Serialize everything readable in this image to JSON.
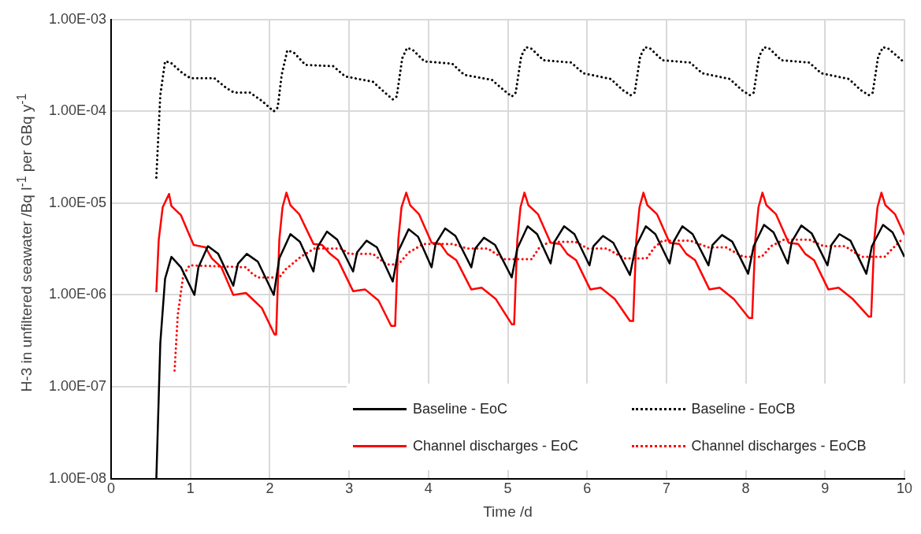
{
  "chart_data": {
    "type": "line",
    "xlabel": "Time /d",
    "ylabel": "H-3 in unfiltered seawater /Bq l$^{-1}$ per GBq y$^{-1}$",
    "xlim": [
      0,
      10
    ],
    "xticks": [
      0,
      1,
      2,
      3,
      4,
      5,
      6,
      7,
      8,
      9,
      10
    ],
    "ylim": [
      1e-08,
      0.001
    ],
    "yticks": [
      {
        "value": 1e-08,
        "label": "1.00E-08"
      },
      {
        "value": 1e-07,
        "label": "1.00E-07"
      },
      {
        "value": 1e-06,
        "label": "1.00E-06"
      },
      {
        "value": 1e-05,
        "label": "1.00E-05"
      },
      {
        "value": 0.0001,
        "label": "1.00E-04"
      },
      {
        "value": 0.001,
        "label": "1.00E-03"
      }
    ],
    "log": "y",
    "grid": true,
    "legend": "bottom right",
    "marker": "none",
    "series": [
      {
        "name": "Baseline - EoC",
        "color": "#000000",
        "line_style": "solid",
        "x": [
          0.57,
          0.62,
          0.68,
          0.76,
          0.88,
          1.05,
          1.1,
          1.22,
          1.35,
          1.54,
          1.6,
          1.71,
          1.85,
          2.05,
          2.12,
          2.26,
          2.38,
          2.55,
          2.6,
          2.72,
          2.85,
          3.05,
          3.1,
          3.22,
          3.35,
          3.55,
          3.62,
          3.75,
          3.87,
          4.04,
          4.09,
          4.21,
          4.34,
          4.54,
          4.59,
          4.7,
          4.84,
          5.05,
          5.12,
          5.25,
          5.37,
          5.54,
          5.59,
          5.71,
          5.84,
          6.03,
          6.08,
          6.2,
          6.33,
          6.54,
          6.61,
          6.74,
          6.86,
          7.04,
          7.09,
          7.2,
          7.33,
          7.53,
          7.58,
          7.7,
          7.83,
          8.03,
          8.1,
          8.23,
          8.35,
          8.53,
          8.58,
          8.7,
          8.83,
          9.03,
          9.08,
          9.18,
          9.32,
          9.52,
          9.59,
          9.73,
          9.85,
          10
        ],
        "values": [
          1e-08,
          3e-07,
          1.5e-06,
          2.6e-06,
          2e-06,
          1e-06,
          2e-06,
          3.4e-06,
          2.8e-06,
          1.26e-06,
          2.2e-06,
          2.8e-06,
          2.3e-06,
          1e-06,
          2.5e-06,
          4.6e-06,
          3.8e-06,
          1.8e-06,
          3.3e-06,
          4.9e-06,
          4e-06,
          1.8e-06,
          2.9e-06,
          3.9e-06,
          3.3e-06,
          1.4e-06,
          3e-06,
          5.2e-06,
          4.3e-06,
          2e-06,
          3.6e-06,
          5.3e-06,
          4.4e-06,
          2e-06,
          3.2e-06,
          4.2e-06,
          3.5e-06,
          1.55e-06,
          3.2e-06,
          5.6e-06,
          4.6e-06,
          2.2e-06,
          3.8e-06,
          5.6e-06,
          4.6e-06,
          2.1e-06,
          3.4e-06,
          4.4e-06,
          3.7e-06,
          1.65e-06,
          3.3e-06,
          5.6e-06,
          4.6e-06,
          2.2e-06,
          3.8e-06,
          5.6e-06,
          4.6e-06,
          2.1e-06,
          3.5e-06,
          4.5e-06,
          3.8e-06,
          1.7e-06,
          3.4e-06,
          5.8e-06,
          4.8e-06,
          2.2e-06,
          3.8e-06,
          5.7e-06,
          4.7e-06,
          2.1e-06,
          3.5e-06,
          4.6e-06,
          3.9e-06,
          1.7e-06,
          3.4e-06,
          5.8e-06,
          4.8e-06,
          2.6e-06
        ]
      },
      {
        "name": "Baseline - EoCB",
        "color": "#000000",
        "line_style": "dotted",
        "x": [
          0.57,
          0.62,
          0.68,
          0.75,
          0.9,
          1.0,
          1.3,
          1.45,
          1.55,
          1.75,
          1.9,
          2.05,
          2.1,
          2.15,
          2.22,
          2.3,
          2.45,
          2.8,
          2.95,
          3.3,
          3.45,
          3.55,
          3.6,
          3.67,
          3.73,
          3.8,
          3.95,
          4.3,
          4.45,
          4.8,
          4.95,
          5.05,
          5.1,
          5.17,
          5.23,
          5.3,
          5.45,
          5.8,
          5.95,
          6.3,
          6.45,
          6.55,
          6.6,
          6.67,
          6.73,
          6.8,
          6.95,
          7.3,
          7.45,
          7.8,
          7.95,
          8.05,
          8.1,
          8.17,
          8.23,
          8.3,
          8.45,
          8.8,
          8.95,
          9.3,
          9.45,
          9.55,
          9.6,
          9.67,
          9.73,
          9.8,
          10
        ],
        "values": [
          1.9e-05,
          0.00015,
          0.00035,
          0.00034,
          0.00026,
          0.00023,
          0.00023,
          0.00018,
          0.00016,
          0.00016,
          0.00013,
          0.0001,
          0.00011,
          0.00025,
          0.00046,
          0.00044,
          0.00032,
          0.00031,
          0.00024,
          0.00021,
          0.00016,
          0.000135,
          0.000145,
          0.00038,
          0.00049,
          0.00047,
          0.00035,
          0.00033,
          0.00025,
          0.00022,
          0.00017,
          0.000145,
          0.00016,
          0.0004,
          0.0005,
          0.00048,
          0.00036,
          0.00034,
          0.00026,
          0.000225,
          0.00017,
          0.00015,
          0.00016,
          0.0004,
          0.0005,
          0.00048,
          0.00036,
          0.00034,
          0.00026,
          0.000225,
          0.00017,
          0.00015,
          0.00016,
          0.0004,
          0.0005,
          0.00048,
          0.00036,
          0.00034,
          0.00026,
          0.000225,
          0.00017,
          0.00015,
          0.00016,
          0.0004,
          0.0005,
          0.00048,
          0.00034
        ]
      },
      {
        "name": "Channel discharges - EoC",
        "color": "#ff0000",
        "line_style": "solid",
        "x": [
          0.57,
          0.6,
          0.65,
          0.73,
          0.76,
          0.88,
          1.04,
          1.19,
          1.27,
          1.39,
          1.54,
          1.7,
          1.8,
          1.9,
          2.06,
          2.08,
          2.12,
          2.16,
          2.21,
          2.26,
          2.37,
          2.55,
          2.66,
          2.76,
          2.86,
          3.05,
          3.2,
          3.37,
          3.53,
          3.58,
          3.62,
          3.66,
          3.72,
          3.77,
          3.88,
          4.04,
          4.15,
          4.24,
          4.35,
          4.54,
          4.67,
          4.85,
          5.05,
          5.08,
          5.12,
          5.16,
          5.21,
          5.26,
          5.38,
          5.54,
          5.66,
          5.75,
          5.86,
          6.04,
          6.17,
          6.35,
          6.54,
          6.58,
          6.62,
          6.66,
          6.71,
          6.76,
          6.88,
          7.04,
          7.16,
          7.25,
          7.36,
          7.54,
          7.67,
          7.85,
          8.04,
          8.08,
          8.12,
          8.16,
          8.21,
          8.26,
          8.38,
          8.54,
          8.66,
          8.75,
          8.86,
          9.04,
          9.17,
          9.35,
          9.55,
          9.58,
          9.62,
          9.66,
          9.71,
          9.76,
          9.88,
          10
        ],
        "values": [
          1.07e-06,
          4e-06,
          9e-06,
          1.26e-05,
          9.3e-06,
          7.4e-06,
          3.5e-06,
          3.3e-06,
          2.5e-06,
          2e-06,
          1e-06,
          1.05e-06,
          8.7e-07,
          7.2e-07,
          3.7e-07,
          3.7e-07,
          4e-06,
          9e-06,
          1.3e-05,
          9.5e-06,
          7.6e-06,
          3.6e-06,
          3.5e-06,
          2.8e-06,
          2.4e-06,
          1.1e-06,
          1.15e-06,
          8.7e-07,
          4.6e-07,
          4.6e-07,
          4e-06,
          9e-06,
          1.3e-05,
          9.5e-06,
          7.6e-06,
          3.7e-06,
          3.6e-06,
          2.8e-06,
          2.4e-06,
          1.15e-06,
          1.2e-06,
          9e-07,
          4.8e-07,
          4.8e-07,
          4e-06,
          9e-06,
          1.3e-05,
          9.5e-06,
          7.6e-06,
          3.7e-06,
          3.6e-06,
          2.8e-06,
          2.4e-06,
          1.15e-06,
          1.2e-06,
          9e-07,
          5.2e-07,
          5.2e-07,
          4e-06,
          9e-06,
          1.3e-05,
          9.5e-06,
          7.6e-06,
          3.7e-06,
          3.6e-06,
          2.8e-06,
          2.4e-06,
          1.15e-06,
          1.2e-06,
          9e-07,
          5.6e-07,
          5.6e-07,
          4e-06,
          9e-06,
          1.3e-05,
          9.5e-06,
          7.6e-06,
          3.7e-06,
          3.6e-06,
          2.8e-06,
          2.4e-06,
          1.15e-06,
          1.2e-06,
          9e-07,
          5.8e-07,
          5.8e-07,
          4e-06,
          9e-06,
          1.3e-05,
          9.5e-06,
          7.6e-06,
          4.5e-06
        ]
      },
      {
        "name": "Channel discharges - EoCB",
        "color": "#ff0000",
        "line_style": "dotted",
        "x": [
          0.8,
          0.84,
          0.91,
          0.99,
          1.7,
          1.78,
          1.85,
          2.12,
          2.2,
          2.39,
          2.56,
          2.9,
          3.0,
          3.3,
          3.4,
          3.47,
          3.62,
          3.75,
          3.94,
          4.3,
          4.49,
          4.75,
          4.88,
          4.95,
          5.3,
          5.4,
          5.53,
          5.85,
          6.01,
          6.25,
          6.4,
          6.47,
          6.75,
          6.85,
          6.95,
          7.3,
          7.53,
          7.75,
          7.9,
          7.97,
          8.2,
          8.32,
          8.48,
          8.8,
          8.98,
          9.25,
          9.4,
          9.47,
          9.75,
          9.85,
          9.98
        ],
        "values": [
          1.5e-07,
          6e-07,
          1.65e-06,
          2.1e-06,
          2e-06,
          1.7e-06,
          1.55e-06,
          1.55e-06,
          1.9e-06,
          2.6e-06,
          3.2e-06,
          3.2e-06,
          2.8e-06,
          2.8e-06,
          2.4e-06,
          2.15e-06,
          2.15e-06,
          2.9e-06,
          3.6e-06,
          3.6e-06,
          3.2e-06,
          3.2e-06,
          2.7e-06,
          2.45e-06,
          2.45e-06,
          3.3e-06,
          3.8e-06,
          3.8e-06,
          3.2e-06,
          3.2e-06,
          2.7e-06,
          2.5e-06,
          2.5e-06,
          3.3e-06,
          3.9e-06,
          3.9e-06,
          3.3e-06,
          3.3e-06,
          2.8e-06,
          2.6e-06,
          2.6e-06,
          3.4e-06,
          4e-06,
          4e-06,
          3.4e-06,
          3.4e-06,
          2.8e-06,
          2.6e-06,
          2.6e-06,
          3.2e-06,
          4.1e-06
        ]
      }
    ]
  }
}
